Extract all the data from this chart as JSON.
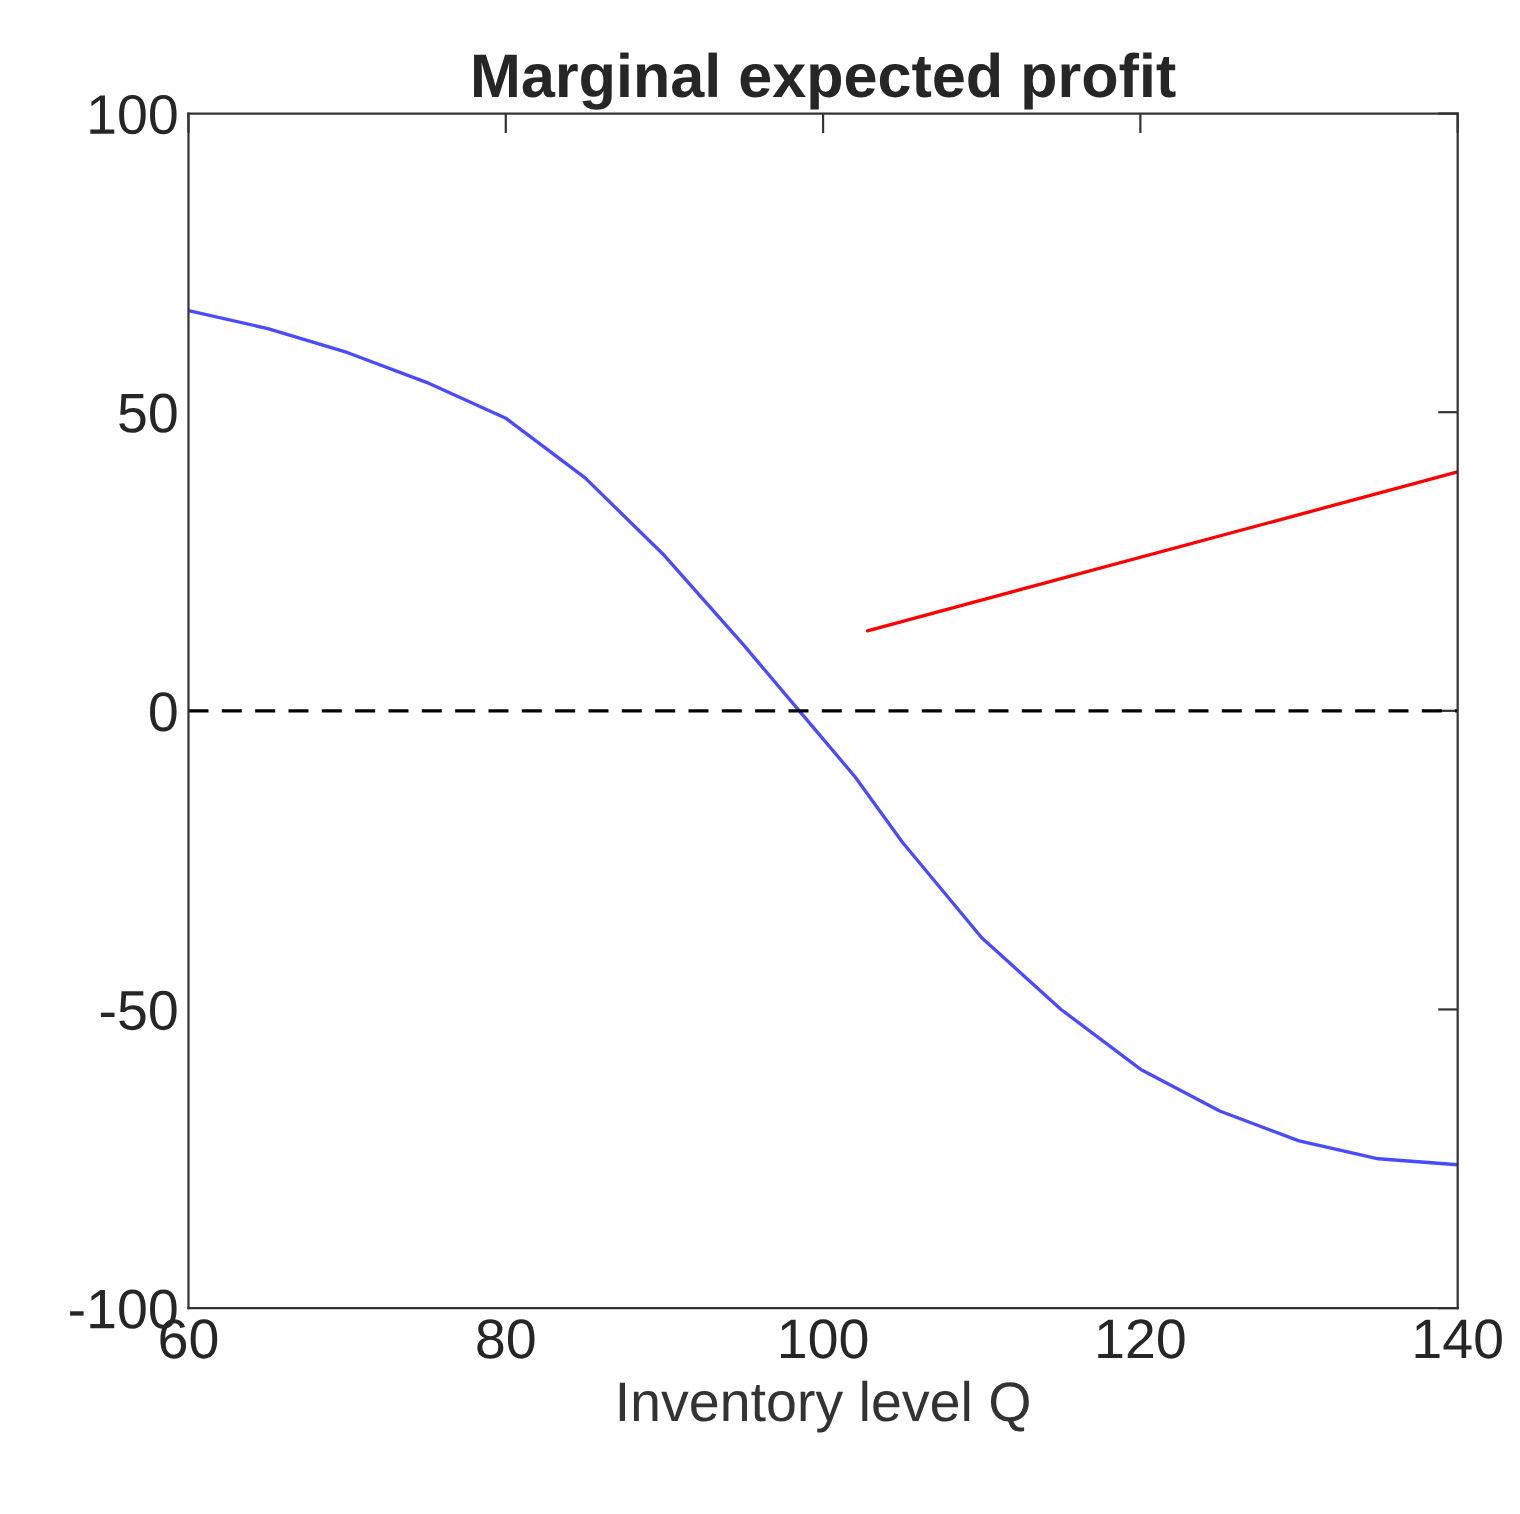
{
  "chart_data": {
    "type": "line",
    "title": "Marginal expected profit",
    "xlabel": "Inventory level Q",
    "xlim": [
      60,
      140
    ],
    "ylim": [
      -100,
      100
    ],
    "xticks": [
      60,
      80,
      100,
      120,
      140
    ],
    "yticks": [
      -100,
      -50,
      0,
      50,
      100
    ],
    "grid": false,
    "legend": false,
    "line_style": "solid",
    "series": [
      {
        "color": "#4a4aff",
        "x": [
          60,
          65,
          70,
          75,
          80,
          85,
          90,
          95,
          98.5,
          102,
          105,
          110,
          115,
          120,
          125,
          130,
          135,
          140
        ],
        "values": [
          67,
          64,
          60,
          55,
          49,
          39,
          26,
          11,
          0,
          -11,
          -22,
          -38,
          -50,
          -60,
          -67,
          -72,
          -75,
          -76
        ]
      },
      {
        "color": "#ff0000",
        "x": [
          102.8,
          140
        ],
        "values": [
          13.4,
          40
        ]
      }
    ],
    "ref_lines": [
      {
        "axis": "y",
        "value": 0,
        "color": "#000000",
        "line_style": "dashed"
      }
    ]
  }
}
